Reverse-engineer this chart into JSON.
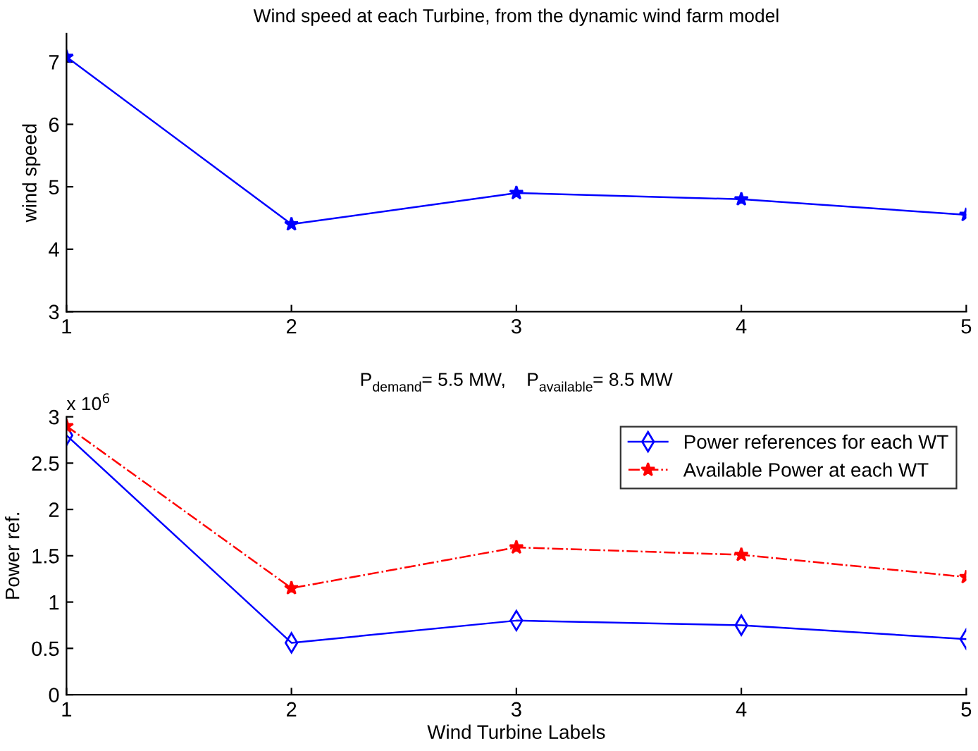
{
  "chart_data": [
    {
      "type": "line",
      "title": "Wind speed at each Turbine, from the dynamic wind farm model",
      "ylabel": "wind speed",
      "x": [
        1,
        2,
        3,
        4,
        5
      ],
      "xlim": [
        1,
        5
      ],
      "xticks": [
        1,
        2,
        3,
        4,
        5
      ],
      "ylim": [
        3,
        7.45
      ],
      "yticks": [
        3,
        4,
        5,
        6,
        7
      ],
      "series": [
        {
          "color": "#0000ff",
          "values": [
            7.08,
            4.4,
            4.9,
            4.8,
            4.55
          ],
          "marker": "star",
          "line_style": "solid"
        }
      ],
      "grid": false,
      "legend": false
    },
    {
      "type": "line",
      "title": "P$_{demand}$= 5.5 MW,    P$_{available}$= 8.5 MW",
      "xlabel": "Wind Turbine Labels",
      "ylabel": "Power ref.",
      "annotations": [
        "x 10$^{6}$"
      ],
      "x": [
        1,
        2,
        3,
        4,
        5
      ],
      "xlim": [
        1,
        5
      ],
      "xticks": [
        1,
        2,
        3,
        4,
        5
      ],
      "ylim": [
        0,
        3
      ],
      "yticks": [
        0,
        0.5,
        1,
        1.5,
        2,
        2.5,
        3
      ],
      "series": [
        {
          "name": "Power references for each WT",
          "color": "#0000ff",
          "values": [
            2.8,
            0.56,
            0.8,
            0.75,
            0.6
          ],
          "marker": "diamond",
          "line_style": "solid"
        },
        {
          "name": "Available Power at each WT",
          "color": "#ff0000",
          "values": [
            2.9,
            1.15,
            1.59,
            1.51,
            1.27
          ],
          "marker": "star",
          "line_style": "dashdot"
        }
      ],
      "grid": false,
      "legend": "top right"
    }
  ]
}
